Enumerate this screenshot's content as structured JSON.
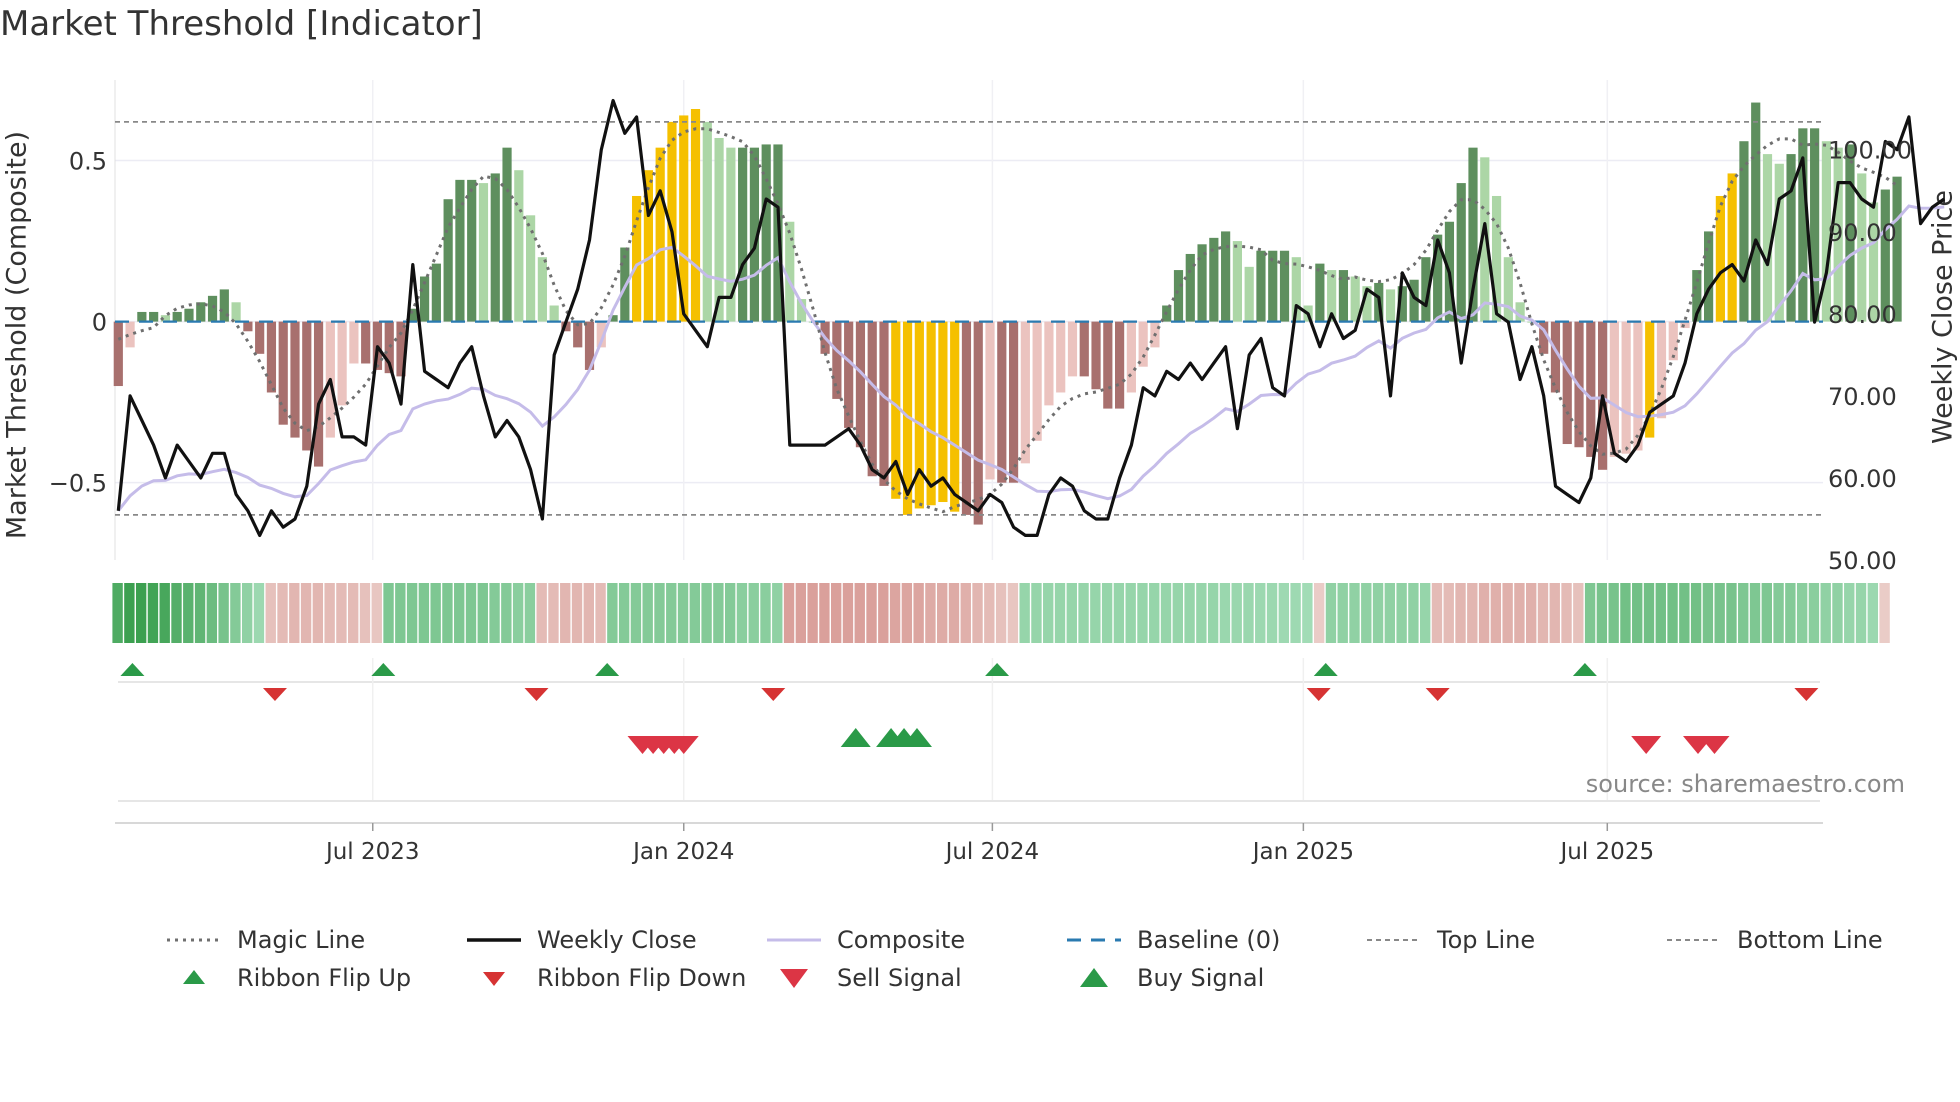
{
  "title": "Market Threshold [Indicator]",
  "source": "source: sharemaestro.com",
  "colors": {
    "dark_green": "#5e8f5e",
    "light_green": "#acd6a6",
    "dark_red": "#a8706e",
    "light_red": "#ebc3bf",
    "gold": "#f5c000",
    "composite": "#c5bce9",
    "magic": "#6f6f6f",
    "close": "#111111",
    "baseline": "#2a7ab0",
    "buy": "#2a9a48",
    "sell": "#dc3545"
  },
  "chart_data": {
    "type": "bar+line",
    "title": "Market Threshold [Indicator]",
    "ylabel_left": "Market Threshold (Composite)",
    "ylabel_right": "Weekly Close Price",
    "yticks_left": [
      0.5,
      0,
      -0.5
    ],
    "yticks_left_labels": [
      "0.5",
      "0",
      "−0.5"
    ],
    "yticks_right": [
      100,
      90,
      80,
      70,
      60,
      50
    ],
    "yticks_right_labels": [
      "100.00",
      "90.00",
      "80.00",
      "70.00",
      "60.00",
      "50.00"
    ],
    "ylim_left": [
      -0.74,
      0.75
    ],
    "ylim_right": [
      50,
      108.5
    ],
    "top_line": 0.62,
    "bottom_line": -0.6,
    "xlim_weeks": [
      0,
      145
    ],
    "xticks": [
      {
        "label": "Jul 2023",
        "week": 21.6
      },
      {
        "label": "Jan 2024",
        "week": 48.0
      },
      {
        "label": "Jul 2024",
        "week": 74.2
      },
      {
        "label": "Jan 2025",
        "week": 100.6
      },
      {
        "label": "Jul 2025",
        "week": 126.4
      }
    ],
    "bars": [
      -0.2,
      -0.08,
      0.03,
      0.03,
      0.02,
      0.03,
      0.04,
      0.06,
      0.08,
      0.1,
      0.06,
      -0.03,
      -0.1,
      -0.22,
      -0.32,
      -0.36,
      -0.4,
      -0.45,
      -0.36,
      -0.26,
      -0.13,
      -0.13,
      -0.15,
      -0.16,
      -0.17,
      0.04,
      0.14,
      0.18,
      0.38,
      0.44,
      0.44,
      0.43,
      0.46,
      0.54,
      0.47,
      0.33,
      0.2,
      0.05,
      -0.03,
      -0.08,
      -0.15,
      -0.08,
      0.02,
      0.23,
      0.39,
      0.47,
      0.54,
      0.62,
      0.64,
      0.66,
      0.62,
      0.57,
      0.54,
      0.54,
      0.54,
      0.55,
      0.55,
      0.31,
      0.07,
      0.0,
      -0.1,
      -0.24,
      -0.33,
      -0.39,
      -0.48,
      -0.51,
      -0.55,
      -0.6,
      -0.58,
      -0.57,
      -0.56,
      -0.59,
      -0.6,
      -0.63,
      -0.49,
      -0.5,
      -0.5,
      -0.44,
      -0.37,
      -0.26,
      -0.22,
      -0.17,
      -0.17,
      -0.21,
      -0.27,
      -0.27,
      -0.22,
      -0.14,
      -0.08,
      0.05,
      0.16,
      0.21,
      0.24,
      0.26,
      0.28,
      0.25,
      0.17,
      0.22,
      0.22,
      0.22,
      0.2,
      0.05,
      0.18,
      0.16,
      0.16,
      0.14,
      0.11,
      0.12,
      0.1,
      0.11,
      0.13,
      0.2,
      0.27,
      0.31,
      0.43,
      0.54,
      0.51,
      0.39,
      0.2,
      0.06,
      0.0,
      -0.1,
      -0.22,
      -0.38,
      -0.39,
      -0.42,
      -0.46,
      -0.42,
      -0.41,
      -0.4,
      -0.36,
      -0.3,
      -0.12,
      -0.02,
      0.16,
      0.28,
      0.39,
      0.46,
      0.56,
      0.68,
      0.52,
      0.49,
      0.52,
      0.6,
      0.6,
      0.56,
      0.54,
      0.55,
      0.46,
      0.37,
      0.41,
      0.45
    ],
    "bar_categories": {
      "dark_green": "composite > 0 and rising",
      "light_green": "composite > 0 and falling",
      "dark_red": "composite < 0 and falling",
      "light_red": "composite < 0 and rising",
      "gold": "beyond top / bottom line"
    },
    "gold_indices": [
      44,
      45,
      46,
      47,
      48,
      49,
      66,
      67,
      68,
      69,
      70,
      71,
      130,
      136,
      137
    ],
    "series": [
      {
        "name": "Weekly Close",
        "axis": "right",
        "values": [
          56,
          70,
          67,
          64,
          60,
          64,
          62,
          60,
          63,
          63,
          58,
          56,
          53,
          56,
          54,
          55,
          59,
          69,
          72,
          65,
          65,
          64,
          76,
          74,
          69,
          86,
          73,
          72,
          71,
          74,
          76,
          70,
          65,
          67,
          65,
          61,
          55,
          75,
          79,
          83,
          89,
          100,
          106,
          102,
          104,
          92,
          95,
          90,
          80,
          78,
          76,
          82,
          82,
          86,
          88,
          94,
          93,
          64,
          64,
          64,
          64,
          65,
          66,
          64,
          61,
          60,
          62,
          58,
          61,
          59,
          60,
          58,
          57,
          56,
          58,
          57,
          54,
          53,
          53,
          58,
          60,
          59,
          56,
          55,
          55,
          60,
          64,
          71,
          70,
          73,
          72,
          74,
          72,
          74,
          76,
          66,
          75,
          77,
          71,
          70,
          81,
          80,
          76,
          80,
          77,
          78,
          83,
          82,
          70,
          85,
          82,
          81,
          89,
          85,
          74,
          83,
          91,
          80,
          79,
          72,
          76,
          70,
          59,
          58,
          57,
          60,
          70,
          63,
          62,
          64,
          68,
          69,
          70,
          74,
          80,
          83,
          85,
          86,
          84,
          89,
          86,
          94,
          95,
          99,
          79,
          85,
          96,
          96,
          94,
          93,
          101,
          100,
          104,
          91,
          93,
          94
        ]
      },
      {
        "name": "Magic Line",
        "axis": "left",
        "note": "smoothed composite, dotted"
      },
      {
        "name": "Composite",
        "axis": "left",
        "note": "smoothed close, light purple"
      }
    ],
    "ribbon": [
      0.85,
      1.0,
      1.0,
      0.95,
      0.9,
      0.8,
      0.75,
      0.7,
      0.6,
      0.5,
      0.4,
      0.3,
      0.2,
      -0.25,
      -0.3,
      -0.35,
      -0.35,
      -0.35,
      -0.3,
      -0.3,
      -0.3,
      -0.25,
      -0.2,
      0.45,
      0.45,
      0.45,
      0.45,
      0.45,
      0.45,
      0.45,
      0.45,
      0.45,
      0.4,
      0.4,
      0.35,
      0.35,
      -0.3,
      -0.3,
      -0.35,
      -0.35,
      -0.35,
      -0.3,
      0.4,
      0.4,
      0.4,
      0.4,
      0.4,
      0.4,
      0.4,
      0.4,
      0.4,
      0.4,
      0.4,
      0.35,
      0.35,
      0.35,
      0.3,
      -0.55,
      -0.55,
      -0.55,
      -0.55,
      -0.55,
      -0.55,
      -0.55,
      -0.55,
      -0.55,
      -0.5,
      -0.5,
      -0.5,
      -0.45,
      -0.45,
      -0.45,
      -0.4,
      -0.35,
      -0.3,
      -0.25,
      -0.2,
      0.25,
      0.25,
      0.25,
      0.25,
      0.25,
      0.25,
      0.25,
      0.25,
      0.25,
      0.25,
      0.25,
      0.25,
      0.25,
      0.25,
      0.25,
      0.25,
      0.25,
      0.22,
      0.22,
      0.22,
      0.2,
      0.2,
      0.18,
      0.18,
      0.15,
      -0.15,
      0.3,
      0.3,
      0.3,
      0.3,
      0.3,
      0.3,
      0.3,
      0.3,
      0.25,
      -0.3,
      -0.3,
      -0.35,
      -0.35,
      -0.4,
      -0.4,
      -0.4,
      -0.4,
      -0.4,
      -0.35,
      -0.35,
      -0.3,
      -0.25,
      0.45,
      0.5,
      0.5,
      0.55,
      0.55,
      0.55,
      0.55,
      0.55,
      0.55,
      0.55,
      0.5,
      0.5,
      0.5,
      0.45,
      0.45,
      0.45,
      0.4,
      0.4,
      0.35,
      0.35,
      0.3,
      0.3,
      0.25,
      0.25,
      0.2,
      -0.15
    ],
    "ribbon_flip_up_weeks": [
      1.2,
      22.5,
      41.5,
      74.6,
      102.5,
      124.5
    ],
    "ribbon_flip_down_weeks": [
      13.3,
      35.5,
      55.6,
      101.9,
      112.0,
      143.3
    ],
    "sell_signal_weeks": [
      44.5,
      45.4,
      46.3,
      47.2,
      48.0,
      129.7,
      134.1,
      135.5
    ],
    "buy_signal_weeks": [
      62.6,
      65.6,
      66.7,
      67.8
    ],
    "legend": [
      {
        "label": "Magic Line",
        "style": "dotted"
      },
      {
        "label": "Weekly Close",
        "style": "solid-black"
      },
      {
        "label": "Composite",
        "style": "solid-purple"
      },
      {
        "label": "Baseline (0)",
        "style": "dashed-blue"
      },
      {
        "label": "Top Line",
        "style": "dashed-gray"
      },
      {
        "label": "Bottom Line",
        "style": "dashed-gray"
      },
      {
        "label": "Ribbon Flip Up",
        "style": "triangle-up-small"
      },
      {
        "label": "Ribbon Flip Down",
        "style": "triangle-down-small"
      },
      {
        "label": "Sell Signal",
        "style": "triangle-down-large"
      },
      {
        "label": "Buy Signal",
        "style": "triangle-up-large"
      }
    ]
  }
}
